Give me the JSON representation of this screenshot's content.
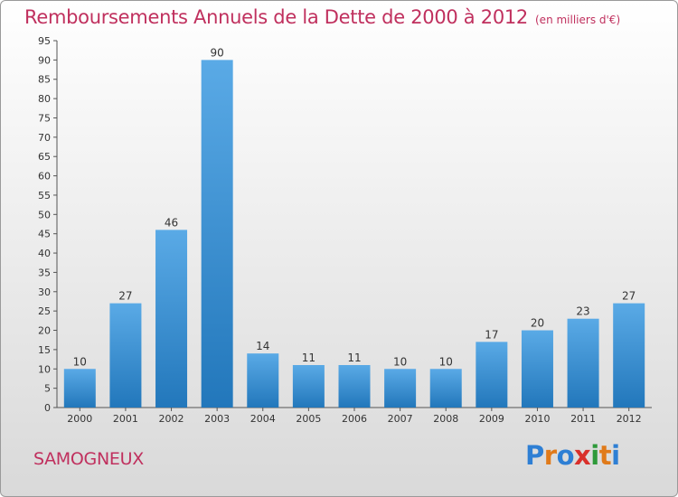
{
  "title": "Remboursements Annuels de la Dette de 2000 à 2012",
  "unit": "(en milliers d'€)",
  "commune": "SAMOGNEUX",
  "logo": {
    "text": "Proxiti",
    "letters": [
      {
        "ch": "P",
        "color": "#2e7fd4"
      },
      {
        "ch": "r",
        "color": "#e07a1a"
      },
      {
        "ch": "o",
        "color": "#2e7fd4"
      },
      {
        "ch": "x",
        "color": "#d9302b"
      },
      {
        "ch": "i",
        "color": "#2e9a3a"
      },
      {
        "ch": "t",
        "color": "#e07a1a"
      },
      {
        "ch": "i",
        "color": "#2e7fd4"
      }
    ]
  },
  "chart_data": {
    "type": "bar",
    "title": "Remboursements Annuels de la Dette de 2000 à 2012",
    "xlabel": "",
    "ylabel": "",
    "categories": [
      "2000",
      "2001",
      "2002",
      "2003",
      "2004",
      "2005",
      "2006",
      "2007",
      "2008",
      "2009",
      "2010",
      "2011",
      "2012"
    ],
    "values": [
      10,
      27,
      46,
      90,
      14,
      11,
      11,
      10,
      10,
      17,
      20,
      23,
      27
    ],
    "ylim": [
      0,
      95
    ],
    "ytick_step": 5,
    "grid": false,
    "bar_color_light": "#5aaae6",
    "bar_color_dark": "#2277bb"
  }
}
